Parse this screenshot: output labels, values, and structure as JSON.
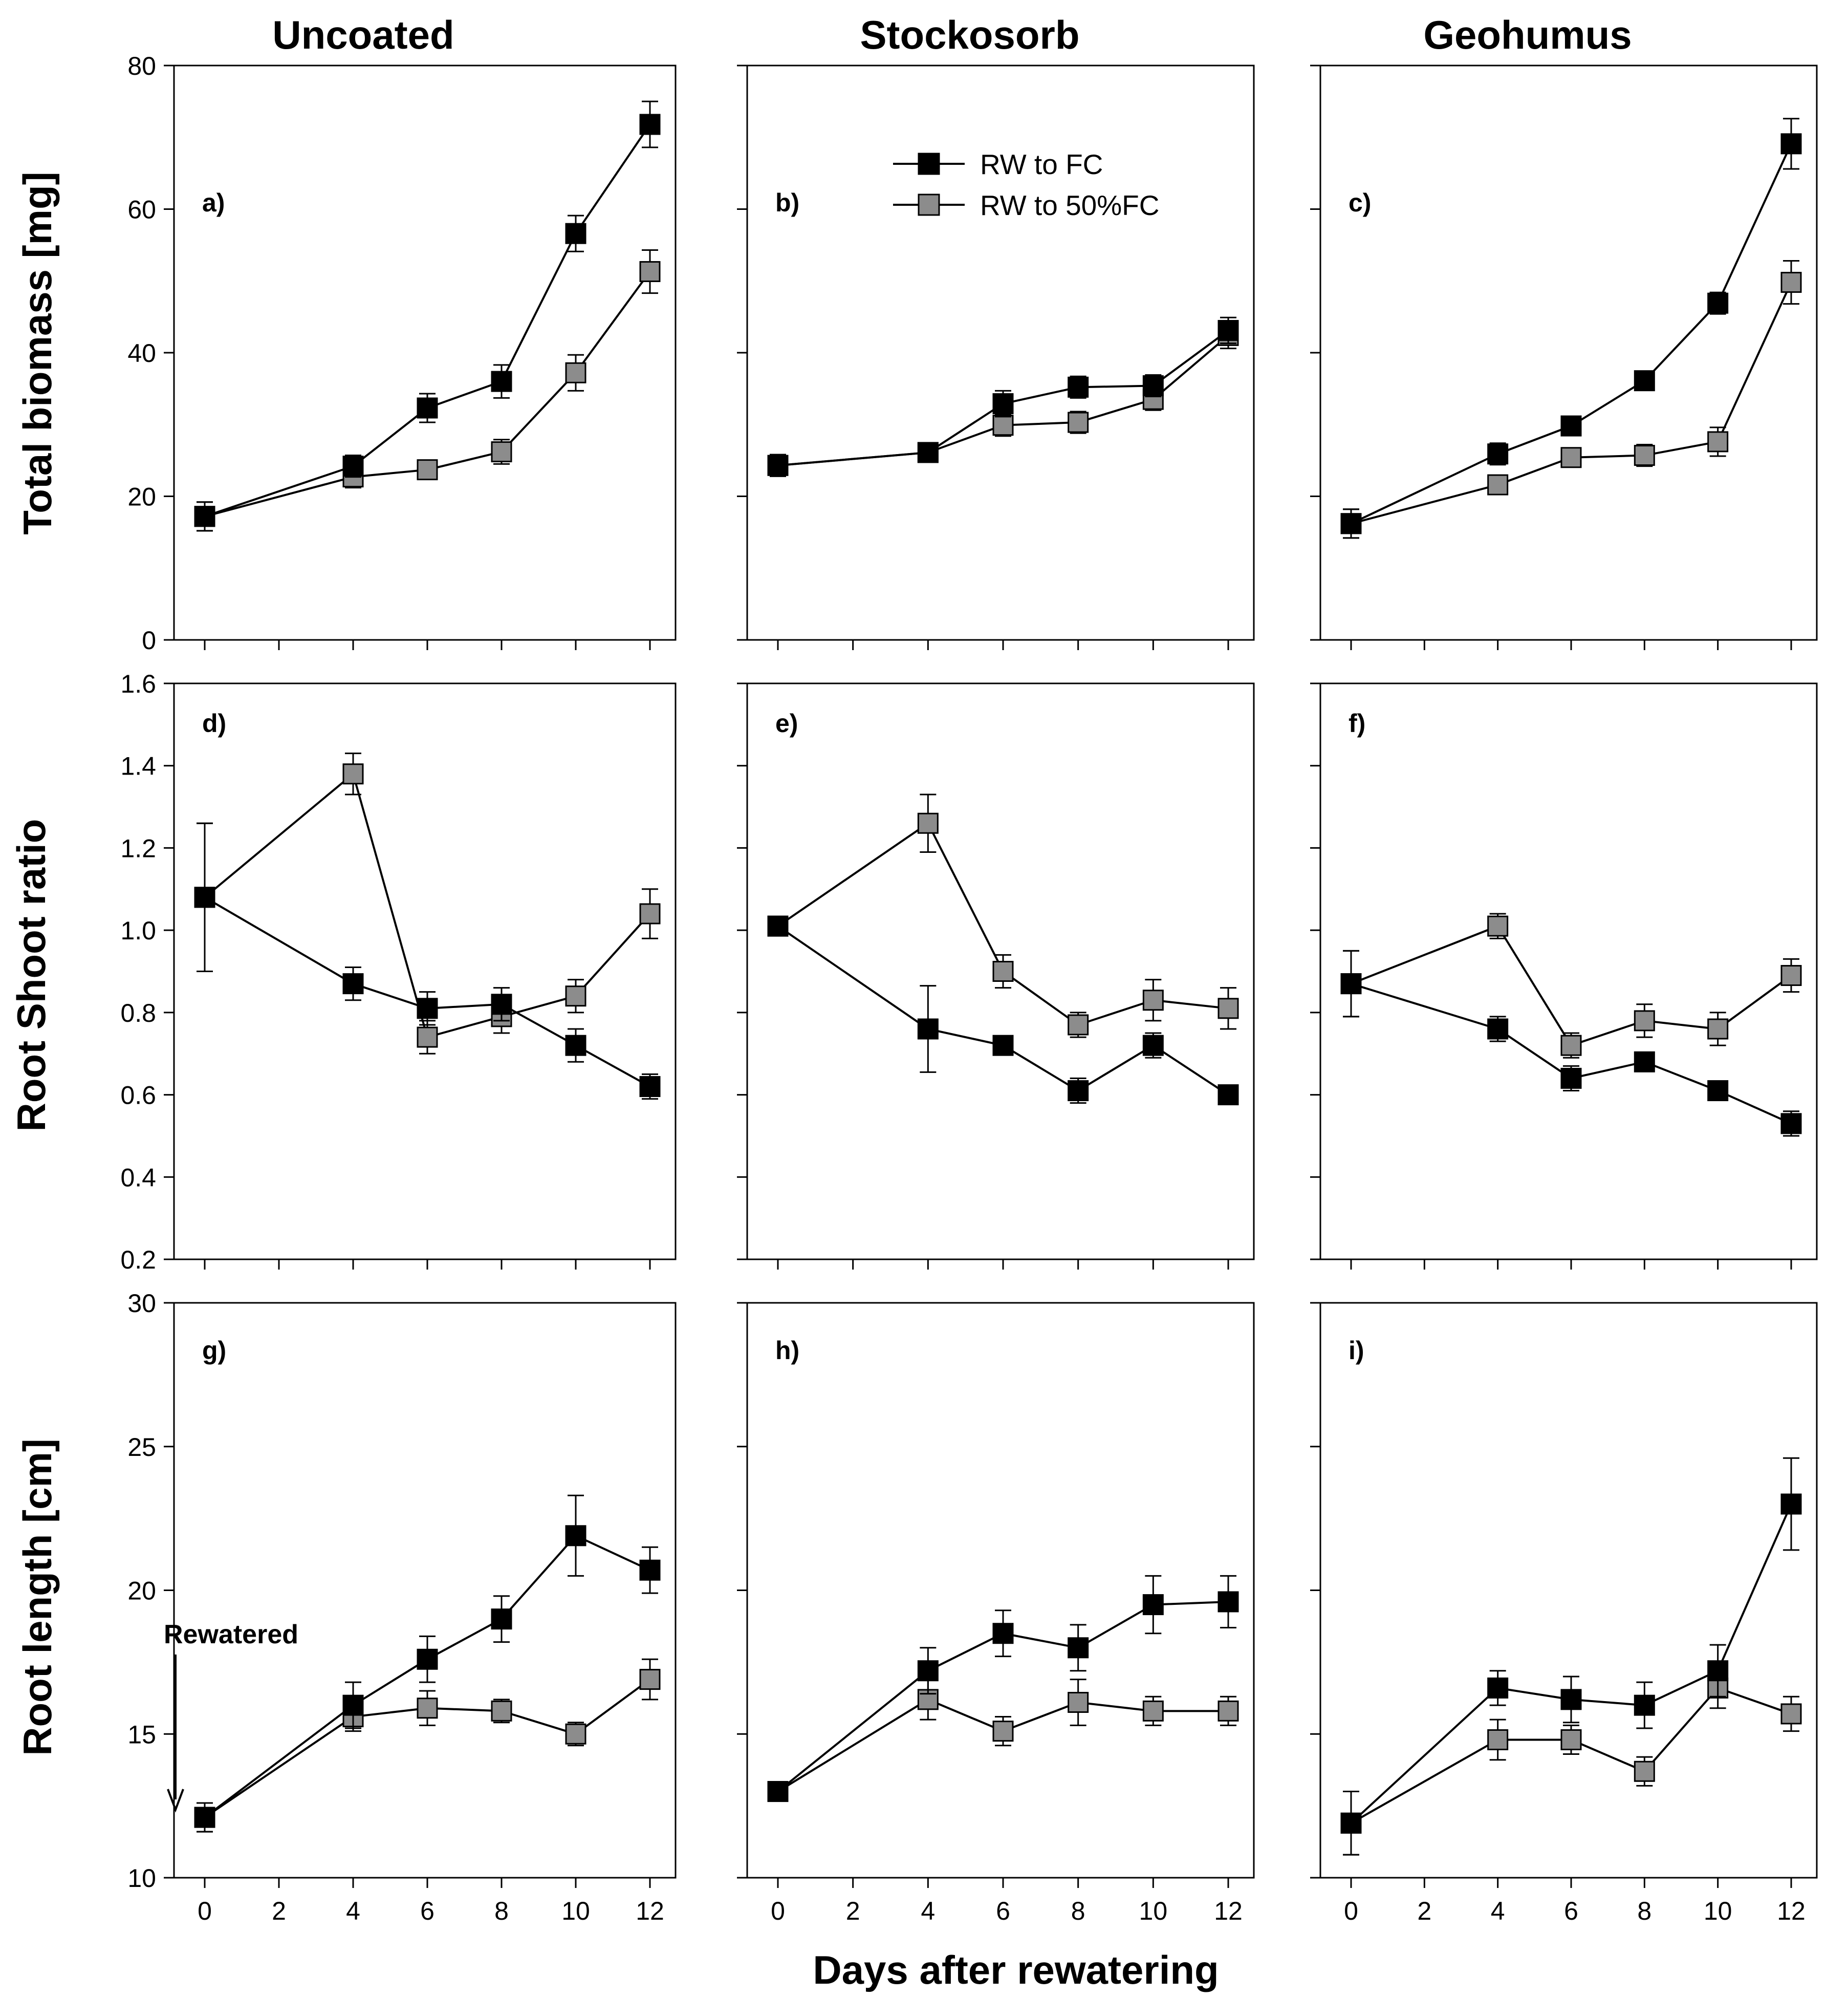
{
  "figure": {
    "column_titles": [
      "Uncoated",
      "Stockosorb",
      "Geohumus"
    ],
    "xlabel": "Days after rewatering",
    "ylabels": [
      "Total biomass [mg]",
      "Root Shoot ratio",
      "Root length [cm]"
    ],
    "legend": {
      "placement": "top (panel b)",
      "entries": [
        {
          "label": "RW to FC",
          "color": "#000000"
        },
        {
          "label": "RW to 50%FC",
          "color": "#8c8c8c"
        }
      ]
    },
    "annotation": {
      "panel": "g)",
      "text": "Rewatered",
      "points_to_x": 0
    }
  },
  "chart_data": [
    {
      "panel": "a)",
      "type": "line",
      "title": "Uncoated",
      "xlabel": "",
      "ylabel": "Total biomass [mg]",
      "x": [
        0,
        4,
        6,
        8,
        10,
        12
      ],
      "xlim": [
        0,
        12
      ],
      "xticks": [
        0,
        2,
        4,
        6,
        8,
        10,
        12
      ],
      "ylim": [
        0,
        80
      ],
      "yticks": [
        0,
        20,
        40,
        60,
        80
      ],
      "ytick_labels": [
        "0",
        "20",
        "40",
        "60",
        "80"
      ],
      "series": [
        {
          "name": "RW to FC",
          "values": [
            17.2,
            24.2,
            32.3,
            36.0,
            56.6,
            71.8
          ],
          "errors": [
            2.0,
            1.5,
            2.0,
            2.3,
            2.5,
            3.2
          ]
        },
        {
          "name": "RW to 50%FC",
          "values": [
            17.2,
            22.7,
            23.7,
            26.2,
            37.2,
            51.3
          ],
          "errors": [
            2.0,
            1.5,
            1.0,
            1.7,
            2.5,
            3.0
          ]
        }
      ]
    },
    {
      "panel": "b)",
      "type": "line",
      "title": "Stockosorb",
      "xlabel": "",
      "ylabel": "",
      "x": [
        0,
        4,
        6,
        8,
        10,
        12
      ],
      "xlim": [
        0,
        12
      ],
      "xticks": [
        0,
        2,
        4,
        6,
        8,
        10,
        12
      ],
      "ylim": [
        0,
        80
      ],
      "yticks": [
        0,
        20,
        40,
        60,
        80
      ],
      "ytick_labels": [],
      "series": [
        {
          "name": "RW to FC",
          "values": [
            24.3,
            26.1,
            32.9,
            35.2,
            35.4,
            43.1
          ],
          "errors": [
            1.5,
            1.2,
            1.8,
            1.5,
            1.5,
            1.8
          ]
        },
        {
          "name": "RW to 50%FC",
          "values": [
            24.3,
            26.1,
            29.9,
            30.3,
            33.5,
            42.4
          ],
          "errors": [
            1.5,
            1.2,
            1.5,
            1.5,
            1.5,
            1.8
          ]
        }
      ]
    },
    {
      "panel": "c)",
      "type": "line",
      "title": "Geohumus",
      "xlabel": "",
      "ylabel": "",
      "x": [
        0,
        4,
        6,
        8,
        10,
        12
      ],
      "xlim": [
        0,
        12
      ],
      "xticks": [
        0,
        2,
        4,
        6,
        8,
        10,
        12
      ],
      "ylim": [
        0,
        80
      ],
      "yticks": [
        0,
        20,
        40,
        60,
        80
      ],
      "ytick_labels": [],
      "series": [
        {
          "name": "RW to FC",
          "values": [
            16.2,
            25.9,
            29.8,
            36.1,
            46.9,
            69.1
          ],
          "errors": [
            2.0,
            1.5,
            1.2,
            1.2,
            1.5,
            3.5
          ]
        },
        {
          "name": "RW to 50%FC",
          "values": [
            16.2,
            21.6,
            25.4,
            25.7,
            27.6,
            49.8
          ],
          "errors": [
            2.0,
            1.2,
            1.2,
            1.5,
            2.0,
            3.0
          ]
        }
      ]
    },
    {
      "panel": "d)",
      "type": "line",
      "title": "",
      "xlabel": "",
      "ylabel": "Root Shoot ratio",
      "x": [
        0,
        4,
        6,
        8,
        10,
        12
      ],
      "xlim": [
        0,
        12
      ],
      "xticks": [
        0,
        2,
        4,
        6,
        8,
        10,
        12
      ],
      "ylim": [
        0.2,
        1.6
      ],
      "yticks": [
        0.2,
        0.4,
        0.6,
        0.8,
        1.0,
        1.2,
        1.4,
        1.6
      ],
      "ytick_labels": [
        "0.2",
        "0.4",
        "0.6",
        "0.8",
        "1.0",
        "1.2",
        "1.4",
        "1.6"
      ],
      "series": [
        {
          "name": "RW to FC",
          "values": [
            1.08,
            0.87,
            0.81,
            0.82,
            0.72,
            0.62
          ],
          "errors": [
            0.18,
            0.04,
            0.04,
            0.04,
            0.04,
            0.03
          ]
        },
        {
          "name": "RW to 50%FC",
          "values": [
            1.08,
            1.38,
            0.74,
            0.79,
            0.84,
            1.04
          ],
          "errors": [
            0.18,
            0.05,
            0.04,
            0.04,
            0.04,
            0.06
          ]
        }
      ]
    },
    {
      "panel": "e)",
      "type": "line",
      "title": "",
      "xlabel": "",
      "ylabel": "",
      "x": [
        0,
        4,
        6,
        8,
        10,
        12
      ],
      "xlim": [
        0,
        12
      ],
      "xticks": [
        0,
        2,
        4,
        6,
        8,
        10,
        12
      ],
      "ylim": [
        0.2,
        1.6
      ],
      "yticks": [
        0.2,
        0.4,
        0.6,
        0.8,
        1.0,
        1.2,
        1.4,
        1.6
      ],
      "ytick_labels": [],
      "series": [
        {
          "name": "RW to FC",
          "values": [
            1.01,
            0.76,
            0.72,
            0.61,
            0.72,
            0.6
          ],
          "errors": [
            0.02,
            0.105,
            0.02,
            0.03,
            0.03,
            0.02
          ]
        },
        {
          "name": "RW to 50%FC",
          "values": [
            1.01,
            1.26,
            0.9,
            0.77,
            0.83,
            0.81
          ],
          "errors": [
            0.02,
            0.07,
            0.04,
            0.03,
            0.05,
            0.05
          ]
        }
      ]
    },
    {
      "panel": "f)",
      "type": "line",
      "title": "",
      "xlabel": "",
      "ylabel": "",
      "x": [
        0,
        4,
        6,
        8,
        10,
        12
      ],
      "xlim": [
        0,
        12
      ],
      "xticks": [
        0,
        2,
        4,
        6,
        8,
        10,
        12
      ],
      "ylim": [
        0.2,
        1.6
      ],
      "yticks": [
        0.2,
        0.4,
        0.6,
        0.8,
        1.0,
        1.2,
        1.4,
        1.6
      ],
      "ytick_labels": [],
      "series": [
        {
          "name": "RW to FC",
          "values": [
            0.87,
            0.76,
            0.64,
            0.68,
            0.61,
            0.53
          ],
          "errors": [
            0.08,
            0.03,
            0.03,
            0.02,
            0.02,
            0.03
          ]
        },
        {
          "name": "RW to 50%FC",
          "values": [
            0.87,
            1.01,
            0.72,
            0.78,
            0.76,
            0.89
          ],
          "errors": [
            0.08,
            0.03,
            0.03,
            0.04,
            0.04,
            0.04
          ]
        }
      ]
    },
    {
      "panel": "g)",
      "type": "line",
      "title": "",
      "xlabel": "",
      "ylabel": "Root length [cm]",
      "x": [
        0,
        4,
        6,
        8,
        10,
        12
      ],
      "xlim": [
        0,
        12
      ],
      "xticks": [
        0,
        2,
        4,
        6,
        8,
        10,
        12
      ],
      "xtick_labels": [
        "0",
        "2",
        "4",
        "6",
        "8",
        "10",
        "12"
      ],
      "ylim": [
        10,
        30
      ],
      "yticks": [
        10,
        15,
        20,
        25,
        30
      ],
      "ytick_labels": [
        "10",
        "15",
        "20",
        "25",
        "30"
      ],
      "series": [
        {
          "name": "RW to FC",
          "values": [
            12.1,
            16.0,
            17.6,
            19.0,
            21.9,
            20.7
          ],
          "errors": [
            0.5,
            0.8,
            0.8,
            0.8,
            1.4,
            0.8
          ]
        },
        {
          "name": "RW to 50%FC",
          "values": [
            12.1,
            15.6,
            15.9,
            15.8,
            15.0,
            16.9
          ],
          "errors": [
            0.5,
            0.5,
            0.6,
            0.4,
            0.4,
            0.7
          ]
        }
      ]
    },
    {
      "panel": "h)",
      "type": "line",
      "title": "",
      "xlabel": "",
      "ylabel": "",
      "x": [
        0,
        4,
        6,
        8,
        10,
        12
      ],
      "xlim": [
        0,
        12
      ],
      "xticks": [
        0,
        2,
        4,
        6,
        8,
        10,
        12
      ],
      "xtick_labels": [
        "0",
        "2",
        "4",
        "6",
        "8",
        "10",
        "12"
      ],
      "ylim": [
        10,
        30
      ],
      "yticks": [
        10,
        15,
        20,
        25,
        30
      ],
      "ytick_labels": [],
      "series": [
        {
          "name": "RW to FC",
          "values": [
            13.0,
            17.2,
            18.5,
            18.0,
            19.5,
            19.6
          ],
          "errors": [
            0.2,
            0.8,
            0.8,
            0.8,
            1.0,
            0.9
          ]
        },
        {
          "name": "RW to 50%FC",
          "values": [
            13.0,
            16.2,
            15.1,
            16.1,
            15.8,
            15.8
          ],
          "errors": [
            0.2,
            0.7,
            0.5,
            0.8,
            0.5,
            0.5
          ]
        }
      ]
    },
    {
      "panel": "i)",
      "type": "line",
      "title": "",
      "xlabel": "",
      "ylabel": "",
      "x": [
        0,
        4,
        6,
        8,
        10,
        12
      ],
      "xlim": [
        0,
        12
      ],
      "xticks": [
        0,
        2,
        4,
        6,
        8,
        10,
        12
      ],
      "xtick_labels": [
        "0",
        "2",
        "4",
        "6",
        "8",
        "10",
        "12"
      ],
      "ylim": [
        10,
        30
      ],
      "yticks": [
        10,
        15,
        20,
        25,
        30
      ],
      "ytick_labels": [],
      "series": [
        {
          "name": "RW to FC",
          "values": [
            11.9,
            16.6,
            16.2,
            16.0,
            17.2,
            23.0
          ],
          "errors": [
            1.1,
            0.6,
            0.8,
            0.8,
            0.9,
            1.6
          ]
        },
        {
          "name": "RW to 50%FC",
          "values": [
            11.9,
            14.8,
            14.8,
            13.7,
            16.6,
            15.7
          ],
          "errors": [
            1.1,
            0.7,
            0.5,
            0.5,
            0.7,
            0.6
          ]
        }
      ]
    }
  ]
}
